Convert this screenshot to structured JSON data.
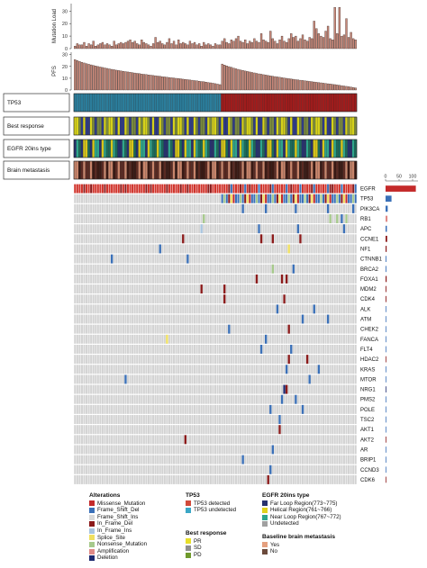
{
  "chart_data": {
    "type": "heatmap",
    "n_samples": 123,
    "split_index": 64,
    "tmb": {
      "ylabel": "Mutation Load",
      "ticks": [
        0,
        10,
        20,
        30
      ],
      "ylim": [
        0,
        36
      ],
      "values": [
        2,
        4,
        3,
        3,
        5,
        2,
        4,
        3,
        6,
        2,
        3,
        4,
        5,
        3,
        4,
        3,
        2,
        6,
        3,
        4,
        5,
        4,
        5,
        6,
        7,
        5,
        6,
        4,
        3,
        7,
        5,
        4,
        3,
        2,
        4,
        9,
        5,
        6,
        4,
        3,
        5,
        8,
        4,
        6,
        3,
        7,
        4,
        5,
        4,
        3,
        6,
        4,
        5,
        3,
        4,
        2,
        5,
        3,
        4,
        3,
        2,
        4,
        3,
        3,
        6,
        8,
        5,
        4,
        7,
        6,
        8,
        10,
        6,
        5,
        7,
        4,
        6,
        5,
        8,
        6,
        5,
        12,
        7,
        6,
        5,
        14,
        8,
        6,
        4,
        7,
        10,
        6,
        5,
        8,
        12,
        9,
        10,
        6,
        8,
        11,
        7,
        6,
        9,
        8,
        22,
        16,
        12,
        10,
        9,
        14,
        18,
        8,
        7,
        33,
        12,
        33,
        10,
        11,
        24,
        9,
        13,
        8,
        7
      ]
    },
    "pfs": {
      "ylabel": "PFS",
      "ticks": [
        0,
        10,
        20,
        30
      ],
      "ylim": [
        0,
        32
      ],
      "values": [
        25.7,
        24.9,
        24.2,
        23.5,
        22.9,
        22.3,
        21.8,
        21.3,
        20.8,
        20.4,
        19.9,
        19.5,
        19.1,
        18.7,
        18.3,
        17.9,
        17.5,
        17.2,
        16.8,
        16.5,
        16.2,
        15.9,
        15.6,
        15.3,
        15.0,
        14.7,
        14.4,
        14.1,
        13.9,
        13.6,
        13.3,
        13.1,
        12.8,
        12.6,
        12.3,
        12.1,
        11.8,
        11.6,
        11.3,
        11.1,
        10.9,
        10.6,
        10.4,
        10.2,
        9.9,
        9.7,
        9.5,
        9.2,
        9.0,
        8.8,
        8.5,
        8.3,
        8.0,
        7.8,
        7.5,
        7.2,
        7.0,
        6.7,
        6.4,
        6.1,
        5.8,
        5.4,
        5.0,
        4.6,
        22.0,
        21.2,
        20.4,
        19.8,
        19.2,
        18.6,
        18.0,
        17.5,
        17.0,
        16.6,
        16.1,
        15.7,
        15.3,
        14.9,
        14.5,
        14.1,
        13.7,
        13.4,
        13.0,
        12.7,
        12.3,
        12.0,
        11.7,
        11.4,
        11.1,
        10.8,
        10.5,
        10.2,
        9.9,
        9.6,
        9.4,
        9.1,
        8.8,
        8.6,
        8.3,
        8.1,
        7.8,
        7.6,
        7.3,
        7.1,
        6.8,
        6.6,
        6.3,
        6.1,
        5.8,
        5.6,
        5.3,
        5.1,
        4.8,
        4.6,
        4.3,
        4.0,
        3.7,
        3.4,
        3.1,
        2.8,
        2.5,
        2.2,
        1.8
      ]
    },
    "tracks": [
      {
        "label": "TP53",
        "pattern": "split",
        "colors": [
          "#2b7d9b",
          "#a01c1c"
        ]
      },
      {
        "label": "Best response",
        "pattern": "mix",
        "colors": [
          "#2f3b87",
          "#d6d21a",
          "#7a8a3e"
        ]
      },
      {
        "label": "EGFR 20ins type",
        "pattern": "mix",
        "colors": [
          "#1c6b5b",
          "#2fa58c",
          "#d8c61a",
          "#27316e"
        ]
      },
      {
        "label": "Brain metastasis",
        "pattern": "mix",
        "colors": [
          "#5a2a22",
          "#c9856b",
          "#3a1a14"
        ]
      }
    ],
    "freq_axis": {
      "ticks": [
        0,
        50,
        100
      ],
      "max": 120
    },
    "genes": [
      {
        "name": "EGFR",
        "freq": 112,
        "color": "#c42a2a"
      },
      {
        "name": "TP53",
        "freq": 22,
        "color": "#3a70b8"
      },
      {
        "name": "PIK3CA",
        "freq": 8,
        "color": "#3a70b8"
      },
      {
        "name": "RB1",
        "freq": 7,
        "color": "#e08a86"
      },
      {
        "name": "APC",
        "freq": 5,
        "color": "#3a70b8"
      },
      {
        "name": "CCNE1",
        "freq": 6,
        "color": "#8b1a1a"
      },
      {
        "name": "NF1",
        "freq": 4,
        "color": "#8b1a1a"
      },
      {
        "name": "CTNNB1",
        "freq": 3,
        "color": "#3a70b8"
      },
      {
        "name": "BRCA2",
        "freq": 3,
        "color": "#3a70b8"
      },
      {
        "name": "FOXA1",
        "freq": 4,
        "color": "#8b1a1a"
      },
      {
        "name": "MDM2",
        "freq": 3,
        "color": "#8b1a1a"
      },
      {
        "name": "CDK4",
        "freq": 3,
        "color": "#8b1a1a"
      },
      {
        "name": "ALK",
        "freq": 2,
        "color": "#3a70b8"
      },
      {
        "name": "ATM",
        "freq": 2,
        "color": "#3a70b8"
      },
      {
        "name": "CHEK2",
        "freq": 2,
        "color": "#3a70b8"
      },
      {
        "name": "FANCA",
        "freq": 2,
        "color": "#3a70b8"
      },
      {
        "name": "FLT4",
        "freq": 2,
        "color": "#3a70b8"
      },
      {
        "name": "HDAC2",
        "freq": 2,
        "color": "#8b1a1a"
      },
      {
        "name": "KRAS",
        "freq": 2,
        "color": "#3a70b8"
      },
      {
        "name": "MTOR",
        "freq": 2,
        "color": "#3a70b8"
      },
      {
        "name": "NRG1",
        "freq": 2,
        "color": "#1d2a70"
      },
      {
        "name": "PMS2",
        "freq": 2,
        "color": "#3a70b8"
      },
      {
        "name": "POLE",
        "freq": 2,
        "color": "#3a70b8"
      },
      {
        "name": "TSC2",
        "freq": 2,
        "color": "#3a70b8"
      },
      {
        "name": "AKT1",
        "freq": 1,
        "color": "#3a70b8"
      },
      {
        "name": "AKT2",
        "freq": 1,
        "color": "#8b1a1a"
      },
      {
        "name": "AR",
        "freq": 1,
        "color": "#3a70b8"
      },
      {
        "name": "BRIP1",
        "freq": 1,
        "color": "#3a70b8"
      },
      {
        "name": "CCND3",
        "freq": 1,
        "color": "#3a70b8"
      },
      {
        "name": "CDK6",
        "freq": 1,
        "color": "#8b1a1a"
      }
    ],
    "alterations": [
      {
        "gene": "PIK3CA",
        "sample": 73,
        "color": "#3a70b8"
      },
      {
        "gene": "PIK3CA",
        "sample": 83,
        "color": "#3a70b8"
      },
      {
        "gene": "PIK3CA",
        "sample": 96,
        "color": "#3a70b8"
      },
      {
        "gene": "PIK3CA",
        "sample": 110,
        "color": "#3a70b8"
      },
      {
        "gene": "PIK3CA",
        "sample": 121,
        "color": "#3a70b8"
      },
      {
        "gene": "RB1",
        "sample": 56,
        "color": "#a6c98b"
      },
      {
        "gene": "RB1",
        "sample": 111,
        "color": "#a6c98b"
      },
      {
        "gene": "RB1",
        "sample": 114,
        "color": "#a6c98b"
      },
      {
        "gene": "RB1",
        "sample": 116,
        "color": "#3a70b8"
      },
      {
        "gene": "RB1",
        "sample": 118,
        "color": "#a6c98b"
      },
      {
        "gene": "APC",
        "sample": 55,
        "color": "#a8c5e0"
      },
      {
        "gene": "APC",
        "sample": 80,
        "color": "#3a70b8"
      },
      {
        "gene": "APC",
        "sample": 97,
        "color": "#3a70b8"
      },
      {
        "gene": "APC",
        "sample": 117,
        "color": "#3a70b8"
      },
      {
        "gene": "CCNE1",
        "sample": 47,
        "color": "#8b1a1a"
      },
      {
        "gene": "CCNE1",
        "sample": 81,
        "color": "#8b1a1a"
      },
      {
        "gene": "CCNE1",
        "sample": 86,
        "color": "#8b1a1a"
      },
      {
        "gene": "CCNE1",
        "sample": 98,
        "color": "#8b1a1a"
      },
      {
        "gene": "NF1",
        "sample": 37,
        "color": "#3a70b8"
      },
      {
        "gene": "NF1",
        "sample": 93,
        "color": "#f0e060"
      },
      {
        "gene": "CTNNB1",
        "sample": 16,
        "color": "#3a70b8"
      },
      {
        "gene": "CTNNB1",
        "sample": 49,
        "color": "#3a70b8"
      },
      {
        "gene": "BRCA2",
        "sample": 86,
        "color": "#a6c98b"
      },
      {
        "gene": "BRCA2",
        "sample": 95,
        "color": "#3a70b8"
      },
      {
        "gene": "FOXA1",
        "sample": 79,
        "color": "#8b1a1a"
      },
      {
        "gene": "FOXA1",
        "sample": 90,
        "color": "#8b1a1a"
      },
      {
        "gene": "FOXA1",
        "sample": 92,
        "color": "#8b1a1a"
      },
      {
        "gene": "MDM2",
        "sample": 55,
        "color": "#8b1a1a"
      },
      {
        "gene": "MDM2",
        "sample": 65,
        "color": "#8b1a1a"
      },
      {
        "gene": "CDK4",
        "sample": 65,
        "color": "#8b1a1a"
      },
      {
        "gene": "CDK4",
        "sample": 91,
        "color": "#8b1a1a"
      },
      {
        "gene": "ALK",
        "sample": 88,
        "color": "#3a70b8"
      },
      {
        "gene": "ALK",
        "sample": 104,
        "color": "#3a70b8"
      },
      {
        "gene": "ATM",
        "sample": 99,
        "color": "#3a70b8"
      },
      {
        "gene": "ATM",
        "sample": 110,
        "color": "#3a70b8"
      },
      {
        "gene": "CHEK2",
        "sample": 67,
        "color": "#3a70b8"
      },
      {
        "gene": "CHEK2",
        "sample": 93,
        "color": "#8b1a1a"
      },
      {
        "gene": "FANCA",
        "sample": 40,
        "color": "#f0e060"
      },
      {
        "gene": "FANCA",
        "sample": 83,
        "color": "#3a70b8"
      },
      {
        "gene": "FLT4",
        "sample": 81,
        "color": "#3a70b8"
      },
      {
        "gene": "FLT4",
        "sample": 94,
        "color": "#3a70b8"
      },
      {
        "gene": "HDAC2",
        "sample": 93,
        "color": "#8b1a1a"
      },
      {
        "gene": "HDAC2",
        "sample": 101,
        "color": "#8b1a1a"
      },
      {
        "gene": "KRAS",
        "sample": 92,
        "color": "#3a70b8"
      },
      {
        "gene": "KRAS",
        "sample": 106,
        "color": "#3a70b8"
      },
      {
        "gene": "MTOR",
        "sample": 22,
        "color": "#3a70b8"
      },
      {
        "gene": "MTOR",
        "sample": 102,
        "color": "#3a70b8"
      },
      {
        "gene": "NRG1",
        "sample": 91,
        "color": "#1d2a70"
      },
      {
        "gene": "NRG1",
        "sample": 92,
        "color": "#8b1a1a"
      },
      {
        "gene": "PMS2",
        "sample": 90,
        "color": "#3a70b8"
      },
      {
        "gene": "PMS2",
        "sample": 96,
        "color": "#3a70b8"
      },
      {
        "gene": "POLE",
        "sample": 85,
        "color": "#3a70b8"
      },
      {
        "gene": "POLE",
        "sample": 99,
        "color": "#3a70b8"
      },
      {
        "gene": "TSC2",
        "sample": 89,
        "color": "#3a70b8"
      },
      {
        "gene": "AKT1",
        "sample": 89,
        "color": "#8b1a1a"
      },
      {
        "gene": "AKT2",
        "sample": 48,
        "color": "#8b1a1a"
      },
      {
        "gene": "AR",
        "sample": 86,
        "color": "#3a70b8"
      },
      {
        "gene": "BRIP1",
        "sample": 73,
        "color": "#3a70b8"
      },
      {
        "gene": "CCND3",
        "sample": 85,
        "color": "#3a70b8"
      },
      {
        "gene": "CDK6",
        "sample": 84,
        "color": "#8b1a1a"
      }
    ]
  },
  "legends": {
    "alterations": {
      "title": "Alterations",
      "items": [
        {
          "label": "Missense_Mutation",
          "color": "#c42a2a"
        },
        {
          "label": "Frame_Shift_Del",
          "color": "#3a70b8"
        },
        {
          "label": "Frame_Shift_Ins",
          "color": "#d9d9d9"
        },
        {
          "label": "In_Frame_Del",
          "color": "#8b1a1a"
        },
        {
          "label": "In_Frame_Ins",
          "color": "#a8c5e0"
        },
        {
          "label": "Splice_Site",
          "color": "#f0e060"
        },
        {
          "label": "Nonsense_Mutation",
          "color": "#a6c98b"
        },
        {
          "label": "Amplification",
          "color": "#e08a86"
        },
        {
          "label": "Deletion",
          "color": "#1d2a70"
        }
      ]
    },
    "tp53": {
      "title": "TP53",
      "items": [
        {
          "label": "TP53 detected",
          "color": "#d14a3a"
        },
        {
          "label": "TP53 undetected",
          "color": "#3aa7c6"
        }
      ]
    },
    "best_response": {
      "title": "Best response",
      "items": [
        {
          "label": "PR",
          "color": "#e8df2a"
        },
        {
          "label": "SD",
          "color": "#8f8f8f"
        },
        {
          "label": "PD",
          "color": "#6f9a2c"
        }
      ]
    },
    "egfr": {
      "title": "EGFR 20ins type",
      "items": [
        {
          "label": "Far Loop Region(773~775)",
          "color": "#27316e"
        },
        {
          "label": "Helical Region(761~766)",
          "color": "#e1d21d"
        },
        {
          "label": "Near Loop Region(767~772)",
          "color": "#2fa58c"
        },
        {
          "label": "Undetected",
          "color": "#a0a0a0"
        }
      ]
    },
    "brain": {
      "title": "Baseline brain metastasis",
      "items": [
        {
          "label": "Yes",
          "color": "#e5a07f"
        },
        {
          "label": "No",
          "color": "#6b4a3c"
        }
      ]
    }
  }
}
